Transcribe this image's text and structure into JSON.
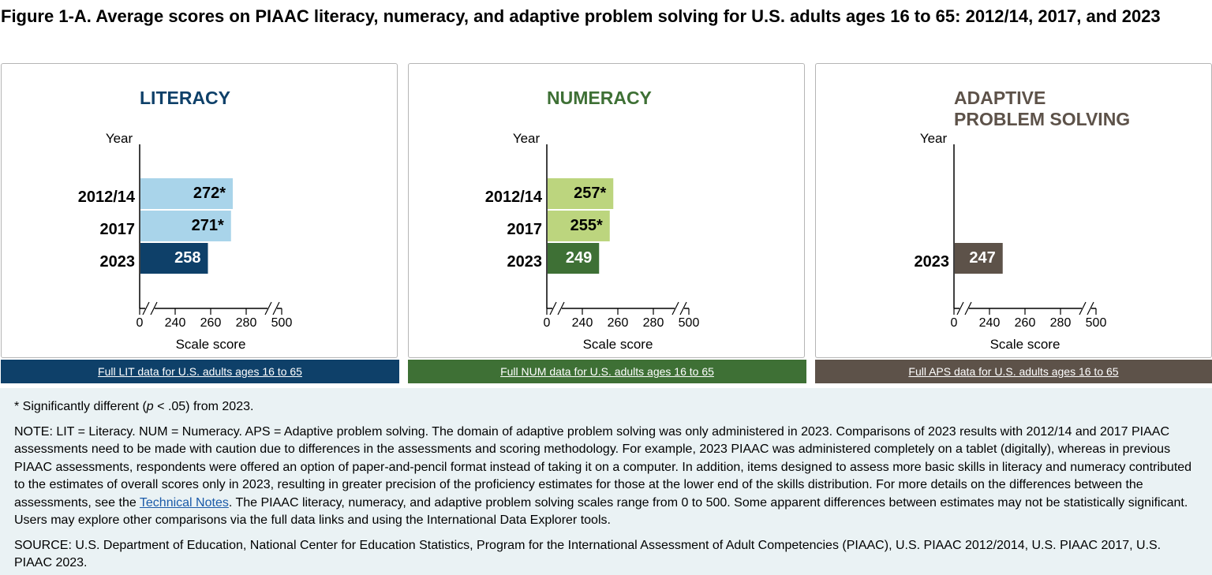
{
  "figure_title": "Figure 1-A. Average scores on PIAAC literacy, numeracy, and adaptive problem solving for U.S. adults ages 16 to 65: 2012/14, 2017, and 2023",
  "chart_data": [
    {
      "type": "bar",
      "orientation": "horizontal",
      "title": "LITERACY",
      "ylabel": "Year",
      "xlabel": "Scale score",
      "categories": [
        "2012/14",
        "2017",
        "2023"
      ],
      "values": [
        272,
        271,
        258
      ],
      "value_labels": [
        "272*",
        "271*",
        "258"
      ],
      "xlim": [
        0,
        500
      ],
      "axis_break": true,
      "xticks": [
        "0",
        "240",
        "260",
        "280",
        "500"
      ],
      "colors": {
        "title": "#0e4069",
        "prior": "#a9d4ea",
        "current": "#0e4069"
      },
      "link_label": "Full LIT data for U.S. adults ages 16 to 65"
    },
    {
      "type": "bar",
      "orientation": "horizontal",
      "title": "NUMERACY",
      "ylabel": "Year",
      "xlabel": "Scale score",
      "categories": [
        "2012/14",
        "2017",
        "2023"
      ],
      "values": [
        257,
        255,
        249
      ],
      "value_labels": [
        "257*",
        "255*",
        "249"
      ],
      "xlim": [
        0,
        500
      ],
      "axis_break": true,
      "xticks": [
        "0",
        "240",
        "260",
        "280",
        "500"
      ],
      "colors": {
        "title": "#3e7035",
        "prior": "#bcd57e",
        "current": "#3e7035"
      },
      "link_label": "Full NUM data for U.S. adults ages 16 to 65"
    },
    {
      "type": "bar",
      "orientation": "horizontal",
      "title": "ADAPTIVE\nPROBLEM SOLVING",
      "ylabel": "Year",
      "xlabel": "Scale score",
      "categories": [
        "",
        "",
        "2023"
      ],
      "values": [
        null,
        null,
        247
      ],
      "value_labels": [
        "",
        "",
        "247"
      ],
      "xlim": [
        0,
        500
      ],
      "axis_break": true,
      "xticks": [
        "0",
        "240",
        "260",
        "280",
        "500"
      ],
      "colors": {
        "title": "#5d5249",
        "prior": "#b4aba3",
        "current": "#5d5249"
      },
      "link_label": "Full APS data for U.S. adults ages 16 to 65"
    }
  ],
  "notes": {
    "significance": "* Significantly different (",
    "significance_p": "p",
    "significance_rest": " < .05) from 2023.",
    "note_before_link": "NOTE: LIT = Literacy. NUM = Numeracy. APS = Adaptive problem solving. The domain of adaptive problem solving was only administered in 2023. Comparisons of 2023 results with 2012/14 and 2017 PIAAC assessments need to be made with caution due to differences in the assessments and scoring methodology. For example, 2023 PIAAC was administered completely on a tablet (digitally), whereas in previous PIAAC assessments, respondents were offered an option of paper-and-pencil format instead of taking it on a computer. In addition, items designed to assess more basic skills in literacy and numeracy contributed to the estimates of overall scores only in 2023, resulting in greater precision of the proficiency estimates for those at the lower end of the skills distribution. For more details on the differences between the assessments, see the ",
    "note_link": "Technical Notes",
    "note_after_link": ". The PIAAC literacy, numeracy, and adaptive problem solving scales range from 0 to 500. Some apparent differences between estimates may not be statistically significant. Users may explore other comparisons via the full data links and using the International Data Explorer tools.",
    "source": "SOURCE: U.S. Department of Education, National Center for Education Statistics, Program for the International Assessment of Adult Competencies (PIAAC), U.S. PIAAC 2012/2014, U.S. PIAAC 2017, U.S. PIAAC 2023."
  }
}
